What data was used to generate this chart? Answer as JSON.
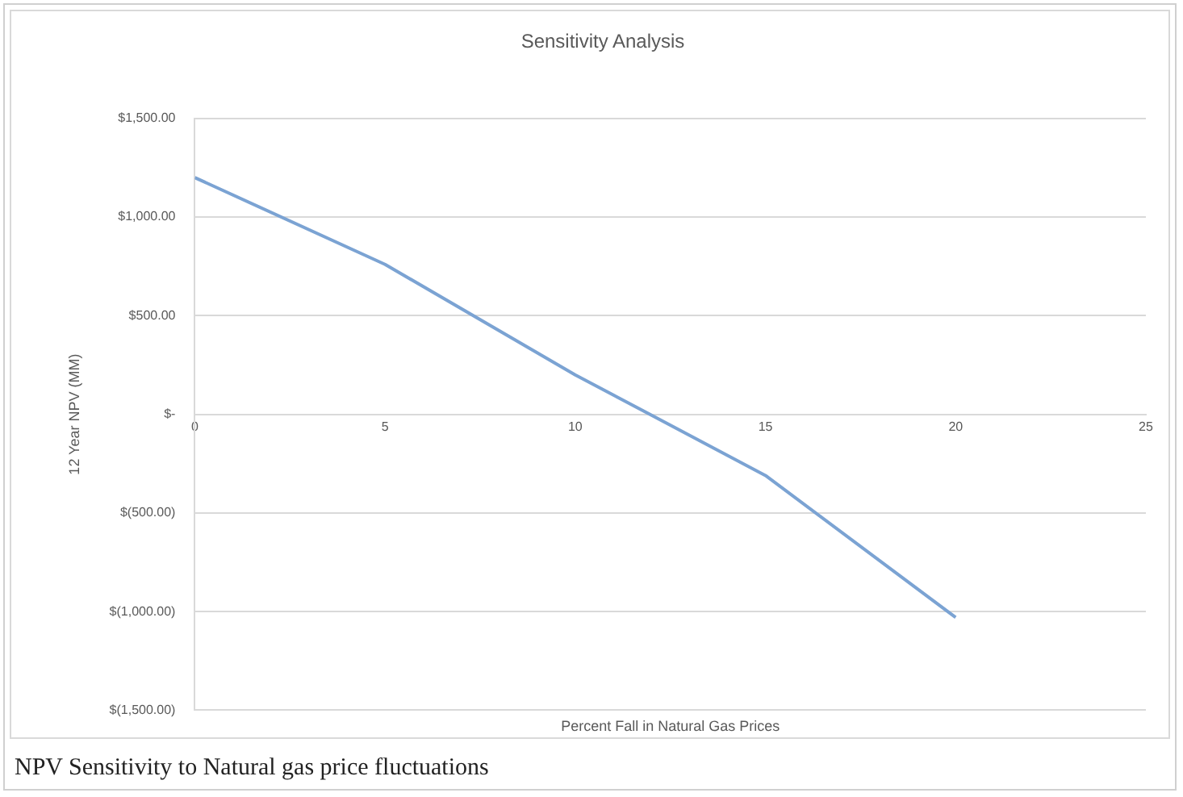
{
  "chart_data": {
    "type": "line",
    "title": "Sensitivity Analysis",
    "xlabel": "Percent Fall in Natural Gas Prices",
    "ylabel": "12 Year NPV (MM)",
    "x": [
      0,
      5,
      10,
      15,
      20
    ],
    "series": [
      {
        "color": "#7ba3d3",
        "values": [
          1200,
          760,
          200,
          -310,
          -1030
        ]
      }
    ],
    "xlim": [
      0,
      25
    ],
    "xticks": [
      0,
      5,
      10,
      15,
      20,
      25
    ],
    "ylim": [
      -1500,
      1500
    ],
    "yticks": [
      {
        "value": -1500,
        "label": "$(1,500.00)"
      },
      {
        "value": -1000,
        "label": "$(1,000.00)"
      },
      {
        "value": -500,
        "label": "$(500.00)"
      },
      {
        "value": 0,
        "label": "$-"
      },
      {
        "value": 500,
        "label": "$500.00"
      },
      {
        "value": 1000,
        "label": "$1,000.00"
      },
      {
        "value": 1500,
        "label": "$1,500.00"
      }
    ],
    "grid": "y",
    "legend": false,
    "marker": "none",
    "annotations": [
      "NPV Sensitivity to Natural gas price fluctuations"
    ]
  }
}
